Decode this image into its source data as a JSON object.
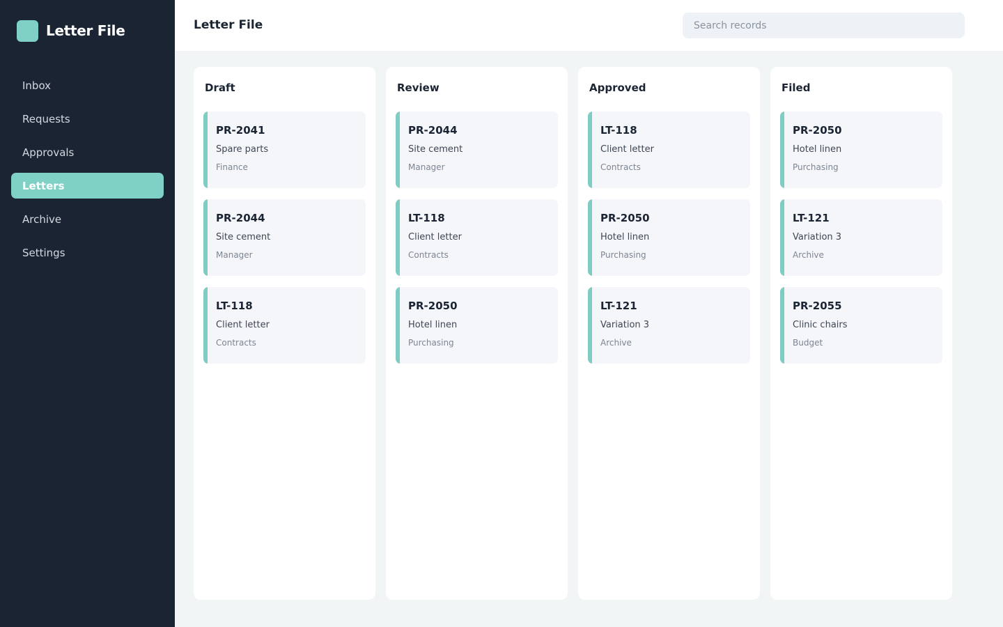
{
  "app": {
    "name": "Letter File"
  },
  "sidebar": {
    "items": [
      {
        "label": "Inbox",
        "active": false
      },
      {
        "label": "Requests",
        "active": false
      },
      {
        "label": "Approvals",
        "active": false
      },
      {
        "label": "Letters",
        "active": true
      },
      {
        "label": "Archive",
        "active": false
      },
      {
        "label": "Settings",
        "active": false
      }
    ]
  },
  "header": {
    "title": "Letter File",
    "search_placeholder": "Search records",
    "search_value": ""
  },
  "colors": {
    "accent": "#7fd0c5",
    "sidebar_bg": "#1b2433"
  },
  "board": {
    "columns": [
      {
        "title": "Draft",
        "cards": [
          {
            "id": "PR-2041",
            "name": "Spare parts",
            "dept": "Finance"
          },
          {
            "id": "PR-2044",
            "name": "Site cement",
            "dept": "Manager"
          },
          {
            "id": "LT-118",
            "name": "Client letter",
            "dept": "Contracts"
          }
        ]
      },
      {
        "title": "Review",
        "cards": [
          {
            "id": "PR-2044",
            "name": "Site cement",
            "dept": "Manager"
          },
          {
            "id": "LT-118",
            "name": "Client letter",
            "dept": "Contracts"
          },
          {
            "id": "PR-2050",
            "name": "Hotel linen",
            "dept": "Purchasing"
          }
        ]
      },
      {
        "title": "Approved",
        "cards": [
          {
            "id": "LT-118",
            "name": "Client letter",
            "dept": "Contracts"
          },
          {
            "id": "PR-2050",
            "name": "Hotel linen",
            "dept": "Purchasing"
          },
          {
            "id": "LT-121",
            "name": "Variation 3",
            "dept": "Archive"
          }
        ]
      },
      {
        "title": "Filed",
        "cards": [
          {
            "id": "PR-2050",
            "name": "Hotel linen",
            "dept": "Purchasing"
          },
          {
            "id": "LT-121",
            "name": "Variation 3",
            "dept": "Archive"
          },
          {
            "id": "PR-2055",
            "name": "Clinic chairs",
            "dept": "Budget"
          }
        ]
      }
    ]
  }
}
